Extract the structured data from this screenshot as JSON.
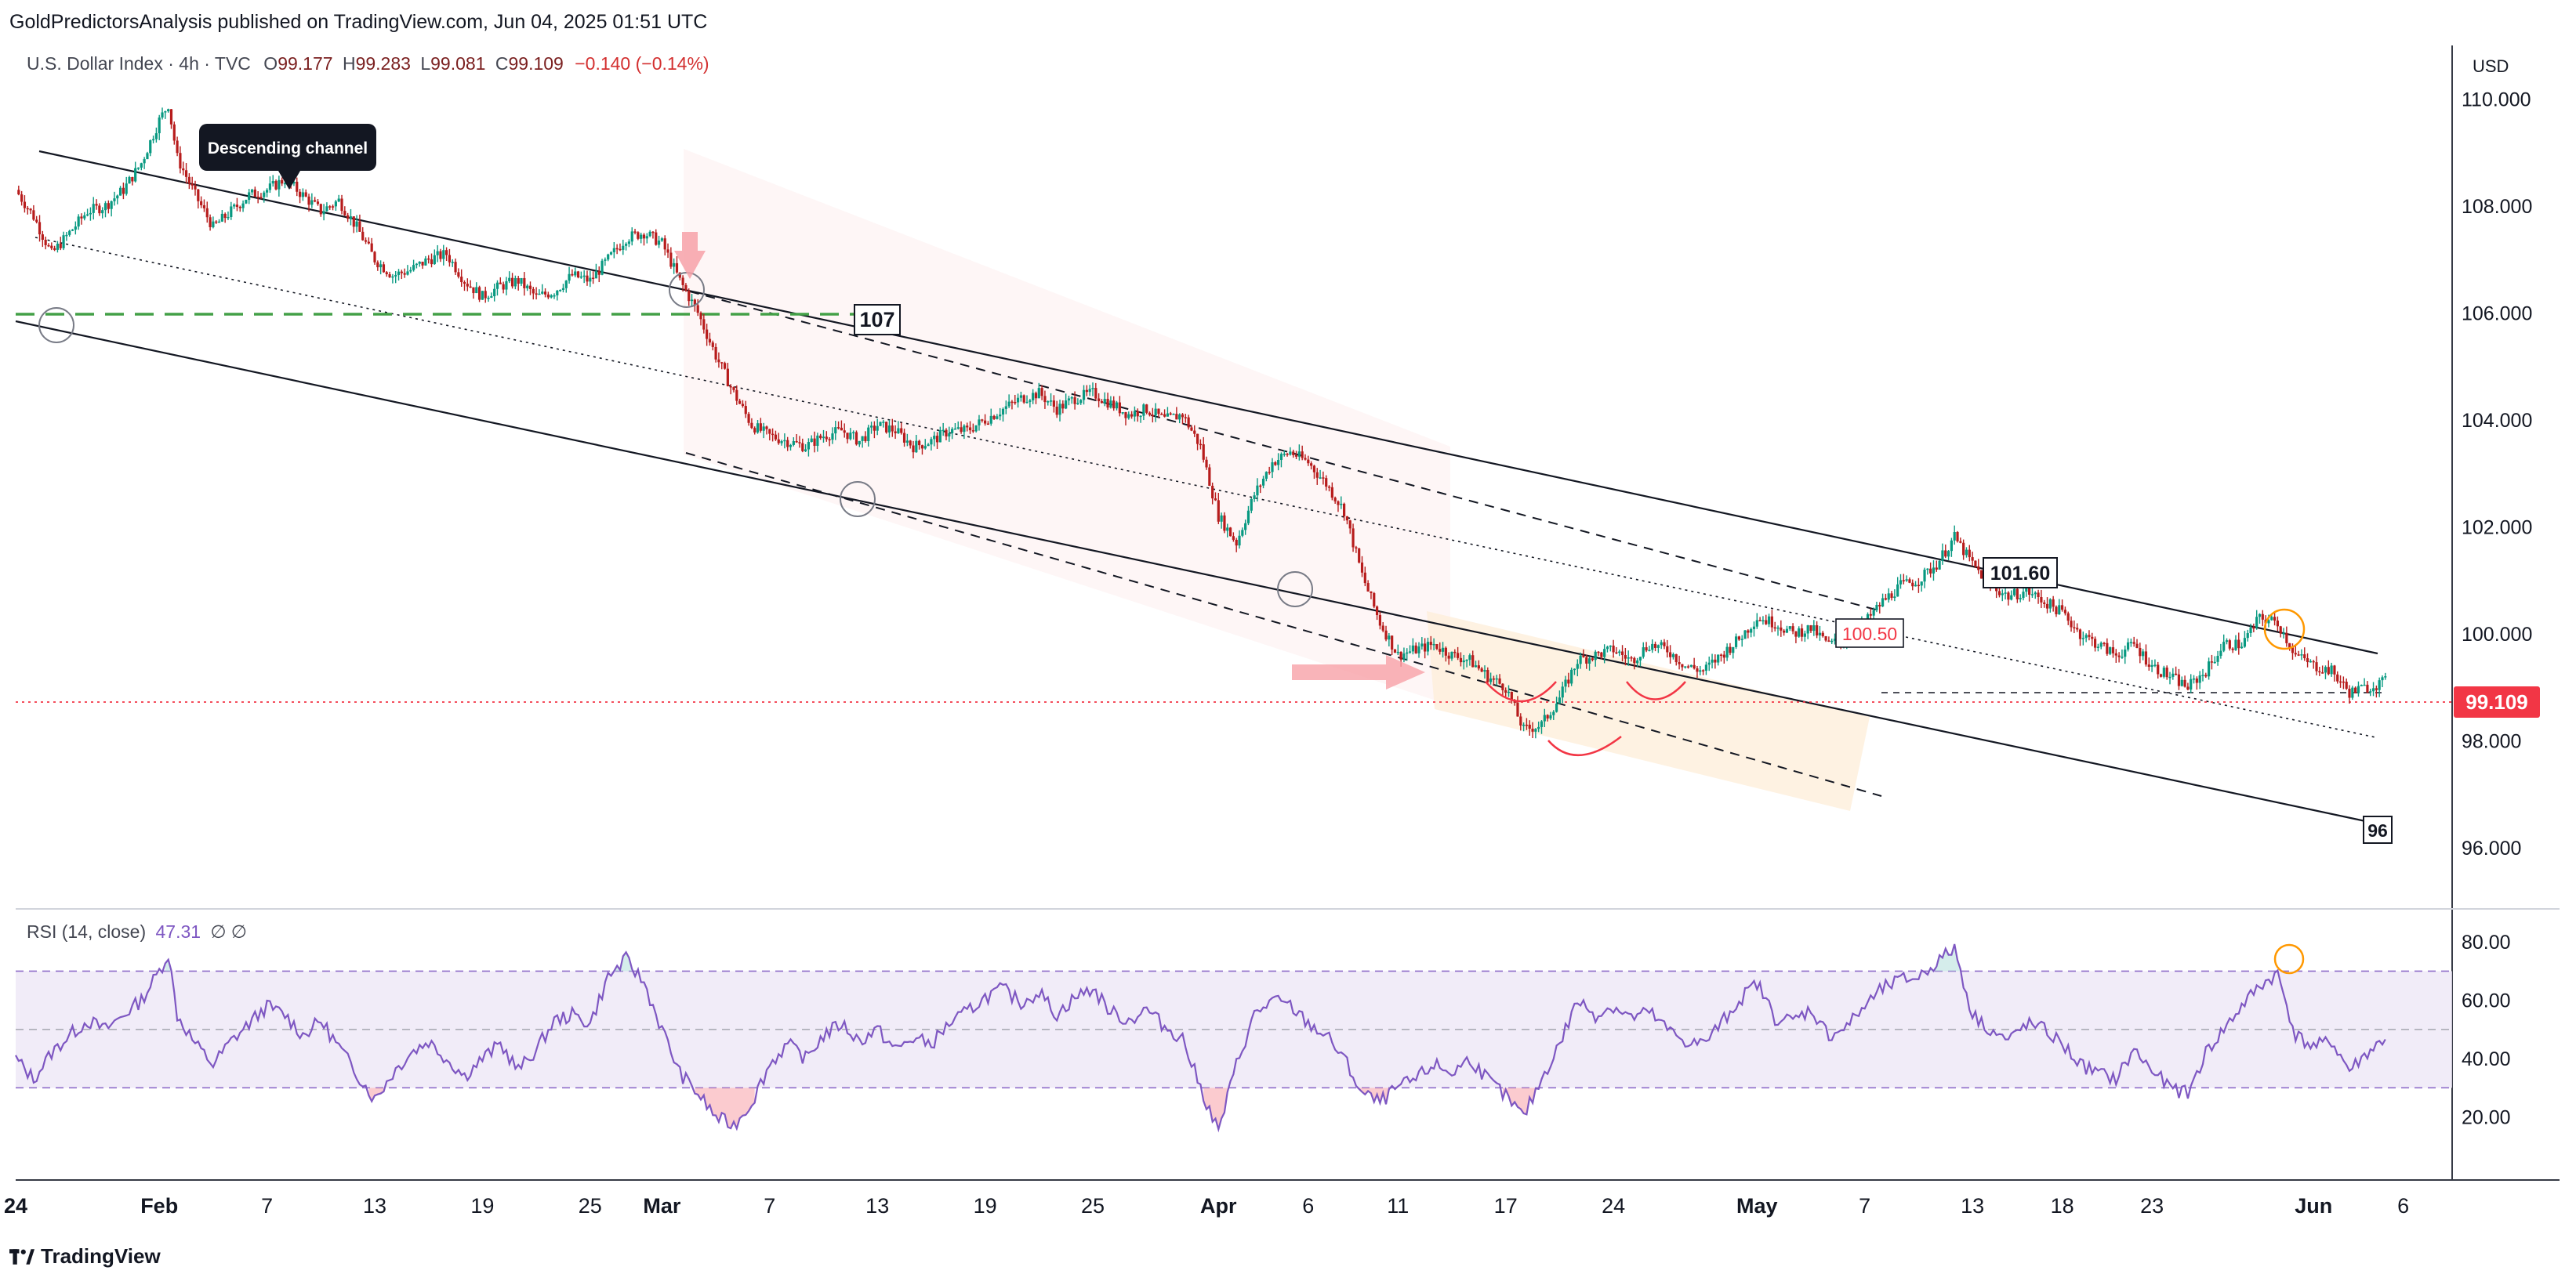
{
  "attribution": "GoldPredictorsAnalysis published on TradingView.com, Jun 04, 2025 01:51 UTC",
  "legend": {
    "symbol": "U.S. Dollar Index · 4h · TVC",
    "open_label": "O",
    "open": "99.177",
    "high_label": "H",
    "high": "99.283",
    "low_label": "L",
    "low": "99.081",
    "close_label": "C",
    "close": "99.109",
    "change": "−0.140 (−0.14%)"
  },
  "currency": "USD",
  "last_price": "99.109",
  "rsi_legend": {
    "label": "RSI (14, close)",
    "value": "47.31",
    "extra": "∅ ∅"
  },
  "footer": {
    "brand": "TradingView"
  },
  "colors": {
    "up": "#089981",
    "down": "#b71c1c",
    "rsi_line": "#7e57c2",
    "rsi_band": "#ede7f6",
    "price_line": "#f23645",
    "level_107": "#43a047",
    "highlight_circle": "#ff9800"
  },
  "chart_data": {
    "type": "candlestick",
    "timeframe": "4h",
    "y_axis": {
      "min": 95.0,
      "max": 111.0,
      "ticks": [
        "110.000",
        "108.000",
        "106.000",
        "104.000",
        "102.000",
        "100.000",
        "98.000",
        "96.000"
      ],
      "tick_values": [
        110,
        108,
        106,
        104,
        102,
        100,
        98,
        96
      ]
    },
    "x_axis": {
      "ticks": [
        {
          "label": "24",
          "bold": true,
          "day": 0
        },
        {
          "label": "Feb",
          "bold": true,
          "day": 8
        },
        {
          "label": "7",
          "bold": false,
          "day": 14
        },
        {
          "label": "13",
          "bold": false,
          "day": 20
        },
        {
          "label": "19",
          "bold": false,
          "day": 26
        },
        {
          "label": "25",
          "bold": false,
          "day": 32
        },
        {
          "label": "Mar",
          "bold": true,
          "day": 36
        },
        {
          "label": "7",
          "bold": false,
          "day": 42
        },
        {
          "label": "13",
          "bold": false,
          "day": 48
        },
        {
          "label": "19",
          "bold": false,
          "day": 54
        },
        {
          "label": "25",
          "bold": false,
          "day": 60
        },
        {
          "label": "Apr",
          "bold": true,
          "day": 67
        },
        {
          "label": "6",
          "bold": false,
          "day": 72
        },
        {
          "label": "11",
          "bold": false,
          "day": 77
        },
        {
          "label": "17",
          "bold": false,
          "day": 83
        },
        {
          "label": "24",
          "bold": false,
          "day": 89
        },
        {
          "label": "May",
          "bold": true,
          "day": 97
        },
        {
          "label": "7",
          "bold": false,
          "day": 103
        },
        {
          "label": "13",
          "bold": false,
          "day": 109
        },
        {
          "label": "18",
          "bold": false,
          "day": 114
        },
        {
          "label": "23",
          "bold": false,
          "day": 119
        },
        {
          "label": "Jun",
          "bold": true,
          "day": 128
        },
        {
          "label": "6",
          "bold": false,
          "day": 133
        }
      ]
    },
    "price_path": [
      [
        0,
        108.3
      ],
      [
        1,
        107.8
      ],
      [
        2,
        107.1
      ],
      [
        3,
        107.5
      ],
      [
        4,
        107.9
      ],
      [
        5,
        108.0
      ],
      [
        6,
        108.3
      ],
      [
        7,
        108.8
      ],
      [
        8,
        109.6
      ],
      [
        8.5,
        109.9
      ],
      [
        9,
        108.9
      ],
      [
        10,
        108.2
      ],
      [
        11,
        107.6
      ],
      [
        12,
        107.9
      ],
      [
        13,
        108.2
      ],
      [
        14,
        108.3
      ],
      [
        15,
        108.5
      ],
      [
        16,
        108.2
      ],
      [
        17,
        107.9
      ],
      [
        18,
        108.1
      ],
      [
        19,
        107.6
      ],
      [
        20,
        107.0
      ],
      [
        21,
        106.7
      ],
      [
        22,
        106.8
      ],
      [
        23,
        107.0
      ],
      [
        24,
        107.1
      ],
      [
        25,
        106.6
      ],
      [
        26,
        106.3
      ],
      [
        27,
        106.5
      ],
      [
        28,
        106.6
      ],
      [
        29,
        106.3
      ],
      [
        30,
        106.4
      ],
      [
        31,
        106.7
      ],
      [
        32,
        106.6
      ],
      [
        33,
        107.0
      ],
      [
        34,
        107.4
      ],
      [
        35,
        107.5
      ],
      [
        36,
        107.3
      ],
      [
        37,
        106.6
      ],
      [
        38,
        106.0
      ],
      [
        39,
        105.2
      ],
      [
        40,
        104.5
      ],
      [
        41,
        103.9
      ],
      [
        42,
        103.7
      ],
      [
        43,
        103.6
      ],
      [
        44,
        103.5
      ],
      [
        45,
        103.7
      ],
      [
        46,
        103.8
      ],
      [
        47,
        103.6
      ],
      [
        48,
        103.9
      ],
      [
        49,
        103.8
      ],
      [
        50,
        103.5
      ],
      [
        51,
        103.6
      ],
      [
        52,
        103.8
      ],
      [
        53,
        103.8
      ],
      [
        54,
        104.0
      ],
      [
        55,
        104.2
      ],
      [
        56,
        104.4
      ],
      [
        57,
        104.5
      ],
      [
        58,
        104.2
      ],
      [
        59,
        104.4
      ],
      [
        60,
        104.5
      ],
      [
        61,
        104.3
      ],
      [
        62,
        104.1
      ],
      [
        63,
        104.2
      ],
      [
        64,
        104.0
      ],
      [
        65,
        104.1
      ],
      [
        66,
        103.5
      ],
      [
        67,
        102.2
      ],
      [
        68,
        101.7
      ],
      [
        69,
        102.6
      ],
      [
        70,
        103.2
      ],
      [
        71,
        103.4
      ],
      [
        72,
        103.2
      ],
      [
        73,
        102.8
      ],
      [
        74,
        102.3
      ],
      [
        75,
        101.1
      ],
      [
        76,
        100.2
      ],
      [
        77,
        99.6
      ],
      [
        78,
        99.7
      ],
      [
        79,
        99.8
      ],
      [
        80,
        99.6
      ],
      [
        81,
        99.5
      ],
      [
        82,
        99.2
      ],
      [
        83,
        99.0
      ],
      [
        84,
        98.2
      ],
      [
        85,
        98.3
      ],
      [
        86,
        98.8
      ],
      [
        87,
        99.5
      ],
      [
        88,
        99.6
      ],
      [
        89,
        99.7
      ],
      [
        90,
        99.5
      ],
      [
        91,
        99.8
      ],
      [
        92,
        99.7
      ],
      [
        93,
        99.4
      ],
      [
        94,
        99.3
      ],
      [
        95,
        99.6
      ],
      [
        96,
        99.9
      ],
      [
        97,
        100.3
      ],
      [
        98,
        100.2
      ],
      [
        99,
        100.0
      ],
      [
        100,
        100.1
      ],
      [
        101,
        99.8
      ],
      [
        102,
        99.9
      ],
      [
        103,
        100.2
      ],
      [
        104,
        100.6
      ],
      [
        105,
        100.9
      ],
      [
        106,
        101.0
      ],
      [
        107,
        101.3
      ],
      [
        108,
        101.8
      ],
      [
        109,
        101.3
      ],
      [
        110,
        100.9
      ],
      [
        111,
        100.7
      ],
      [
        112,
        100.8
      ],
      [
        113,
        100.6
      ],
      [
        114,
        100.4
      ],
      [
        115,
        100.0
      ],
      [
        116,
        99.8
      ],
      [
        117,
        99.6
      ],
      [
        118,
        99.8
      ],
      [
        119,
        99.4
      ],
      [
        120,
        99.2
      ],
      [
        121,
        99.0
      ],
      [
        122,
        99.3
      ],
      [
        123,
        99.8
      ],
      [
        124,
        99.8
      ],
      [
        125,
        100.3
      ],
      [
        126,
        100.2
      ],
      [
        127,
        99.6
      ],
      [
        128,
        99.4
      ],
      [
        129,
        99.3
      ],
      [
        130,
        98.9
      ],
      [
        131,
        99.0
      ],
      [
        132,
        99.1
      ]
    ],
    "rsi": {
      "value": 47.31,
      "range": [
        0,
        90
      ],
      "ticks": [
        "80.00",
        "60.00",
        "40.00",
        "20.00"
      ],
      "tick_values": [
        80,
        60,
        40,
        20
      ],
      "band": [
        30,
        70
      ],
      "path": [
        [
          0,
          40
        ],
        [
          1,
          33
        ],
        [
          2,
          42
        ],
        [
          3,
          48
        ],
        [
          4,
          53
        ],
        [
          5,
          50
        ],
        [
          6,
          55
        ],
        [
          7,
          60
        ],
        [
          8,
          70
        ],
        [
          8.5,
          76
        ],
        [
          9,
          55
        ],
        [
          10,
          45
        ],
        [
          11,
          38
        ],
        [
          12,
          46
        ],
        [
          13,
          52
        ],
        [
          14,
          58
        ],
        [
          15,
          55
        ],
        [
          16,
          48
        ],
        [
          17,
          53
        ],
        [
          18,
          44
        ],
        [
          19,
          35
        ],
        [
          20,
          26
        ],
        [
          21,
          35
        ],
        [
          22,
          42
        ],
        [
          23,
          46
        ],
        [
          24,
          40
        ],
        [
          25,
          34
        ],
        [
          26,
          40
        ],
        [
          27,
          45
        ],
        [
          28,
          36
        ],
        [
          29,
          43
        ],
        [
          30,
          53
        ],
        [
          31,
          55
        ],
        [
          32,
          52
        ],
        [
          33,
          68
        ],
        [
          34,
          74
        ],
        [
          35,
          66
        ],
        [
          36,
          50
        ],
        [
          37,
          35
        ],
        [
          38,
          28
        ],
        [
          39,
          20
        ],
        [
          40,
          17
        ],
        [
          41,
          25
        ],
        [
          42,
          38
        ],
        [
          43,
          45
        ],
        [
          44,
          40
        ],
        [
          45,
          48
        ],
        [
          46,
          52
        ],
        [
          47,
          46
        ],
        [
          48,
          50
        ],
        [
          49,
          43
        ],
        [
          50,
          47
        ],
        [
          51,
          45
        ],
        [
          52,
          52
        ],
        [
          53,
          56
        ],
        [
          54,
          61
        ],
        [
          55,
          64
        ],
        [
          56,
          59
        ],
        [
          57,
          63
        ],
        [
          58,
          55
        ],
        [
          59,
          61
        ],
        [
          60,
          64
        ],
        [
          61,
          56
        ],
        [
          62,
          53
        ],
        [
          63,
          57
        ],
        [
          64,
          51
        ],
        [
          65,
          47
        ],
        [
          66,
          30
        ],
        [
          67,
          15
        ],
        [
          68,
          38
        ],
        [
          69,
          55
        ],
        [
          70,
          60
        ],
        [
          71,
          58
        ],
        [
          72,
          52
        ],
        [
          73,
          48
        ],
        [
          74,
          40
        ],
        [
          75,
          28
        ],
        [
          76,
          25
        ],
        [
          77,
          30
        ],
        [
          78,
          33
        ],
        [
          79,
          38
        ],
        [
          80,
          35
        ],
        [
          81,
          40
        ],
        [
          82,
          33
        ],
        [
          83,
          27
        ],
        [
          84,
          20
        ],
        [
          85,
          33
        ],
        [
          86,
          45
        ],
        [
          87,
          60
        ],
        [
          88,
          55
        ],
        [
          89,
          58
        ],
        [
          90,
          54
        ],
        [
          91,
          56
        ],
        [
          92,
          50
        ],
        [
          93,
          46
        ],
        [
          94,
          45
        ],
        [
          95,
          52
        ],
        [
          96,
          60
        ],
        [
          97,
          66
        ],
        [
          98,
          54
        ],
        [
          99,
          53
        ],
        [
          100,
          57
        ],
        [
          101,
          48
        ],
        [
          102,
          51
        ],
        [
          103,
          58
        ],
        [
          104,
          64
        ],
        [
          105,
          67
        ],
        [
          106,
          68
        ],
        [
          107,
          73
        ],
        [
          108,
          78
        ],
        [
          109,
          55
        ],
        [
          110,
          50
        ],
        [
          111,
          46
        ],
        [
          112,
          52
        ],
        [
          113,
          50
        ],
        [
          114,
          45
        ],
        [
          115,
          38
        ],
        [
          116,
          35
        ],
        [
          117,
          33
        ],
        [
          118,
          43
        ],
        [
          119,
          36
        ],
        [
          120,
          30
        ],
        [
          121,
          28
        ],
        [
          122,
          42
        ],
        [
          123,
          50
        ],
        [
          124,
          58
        ],
        [
          125,
          65
        ],
        [
          126,
          69
        ],
        [
          127,
          48
        ],
        [
          128,
          44
        ],
        [
          129,
          46
        ],
        [
          130,
          36
        ],
        [
          131,
          42
        ],
        [
          132,
          47
        ]
      ]
    },
    "annotations": {
      "descending_channel_label": "Descending channel",
      "level_107": "107",
      "level_101_60": "101.60",
      "level_100_50": "100.50",
      "level_96": "96"
    }
  }
}
